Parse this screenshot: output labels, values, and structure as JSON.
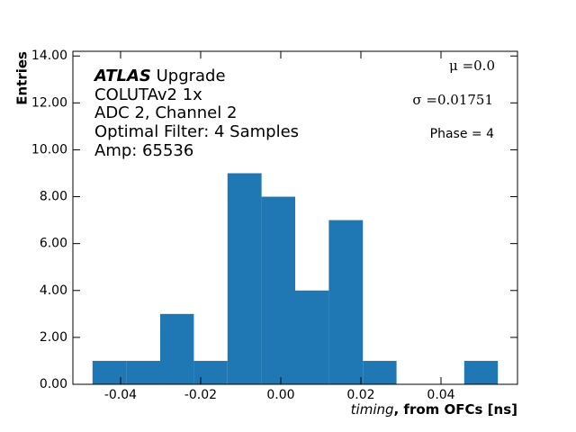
{
  "chart_data": {
    "type": "histogram",
    "bins": [
      -0.047,
      -0.0386,
      -0.0301,
      -0.0217,
      -0.0133,
      -0.0048,
      0.0036,
      0.012,
      0.0205,
      0.0289,
      0.0373,
      0.0458,
      0.0542
    ],
    "values": [
      1,
      1,
      3,
      1,
      9,
      8,
      4,
      7,
      1,
      0,
      0,
      1
    ],
    "color": "#1f77b4",
    "xlim": [
      -0.0519,
      0.0591
    ],
    "ylim": [
      0,
      14.2
    ],
    "xticks": [
      {
        "value": -0.04,
        "label": "-0.04"
      },
      {
        "value": -0.02,
        "label": "-0.02"
      },
      {
        "value": 0,
        "label": "0.00"
      },
      {
        "value": 0.02,
        "label": "0.02"
      },
      {
        "value": 0.04,
        "label": "0.04"
      }
    ],
    "yticks": [
      {
        "value": 0,
        "label": "0.00"
      },
      {
        "value": 2,
        "label": "2.00"
      },
      {
        "value": 4,
        "label": "4.00"
      },
      {
        "value": 6,
        "label": "6.00"
      },
      {
        "value": 8,
        "label": "8.00"
      },
      {
        "value": 10,
        "label": "10.00"
      },
      {
        "value": 12,
        "label": "12.00"
      },
      {
        "value": 14,
        "label": "14.00"
      }
    ],
    "xlabel": [
      "timing",
      ", from OFCs [ns]"
    ],
    "ylabel": "Entries",
    "annotations": [
      "ATLAS",
      "Upgrade",
      "COLUTAv2 1x",
      "ADC 2, Channel 2",
      "Optimal Filter: 4 Samples",
      "Amp: 65536"
    ],
    "stats": [
      "μ =0.0",
      "σ =0.01751",
      "Phase = 4"
    ]
  }
}
